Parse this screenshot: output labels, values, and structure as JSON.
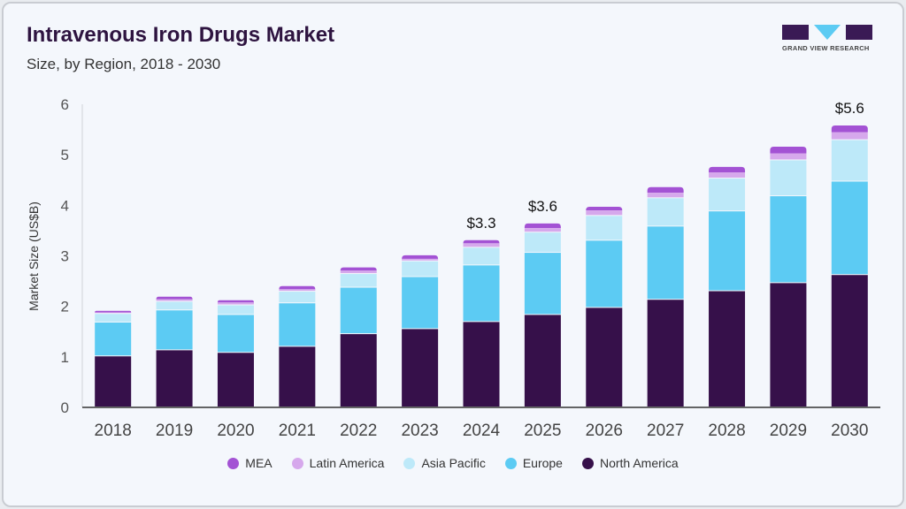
{
  "header": {
    "title": "Intravenous Iron Drugs Market",
    "subtitle": "Size, by Region, 2018 - 2030"
  },
  "logo": {
    "text": "GRAND VIEW RESEARCH"
  },
  "chart_data": {
    "type": "bar",
    "stacked": true,
    "title": "Intravenous Iron Drugs Market",
    "subtitle": "Size, by Region, 2018 - 2030",
    "xlabel": "",
    "ylabel": "Market Size (US$B)",
    "ylim": [
      0,
      6
    ],
    "yticks": [
      "0",
      "1",
      "2",
      "3",
      "4",
      "5",
      "6"
    ],
    "categories": [
      "2018",
      "2019",
      "2020",
      "2021",
      "2022",
      "2023",
      "2024",
      "2025",
      "2026",
      "2027",
      "2028",
      "2029",
      "2030"
    ],
    "series": [
      {
        "name": "North America",
        "color": "#36104a",
        "values": [
          1.01,
          1.13,
          1.08,
          1.2,
          1.45,
          1.55,
          1.69,
          1.83,
          1.97,
          2.13,
          2.3,
          2.46,
          2.62
        ]
      },
      {
        "name": "Europe",
        "color": "#5ccbf3",
        "values": [
          0.67,
          0.79,
          0.75,
          0.86,
          0.92,
          1.03,
          1.12,
          1.23,
          1.33,
          1.45,
          1.58,
          1.72,
          1.85
        ]
      },
      {
        "name": "Asia Pacific",
        "color": "#bde9f9",
        "values": [
          0.17,
          0.17,
          0.19,
          0.23,
          0.27,
          0.31,
          0.35,
          0.4,
          0.49,
          0.56,
          0.65,
          0.71,
          0.82
        ]
      },
      {
        "name": "Latin America",
        "color": "#d6a8ec",
        "values": [
          0.03,
          0.05,
          0.06,
          0.05,
          0.07,
          0.05,
          0.09,
          0.09,
          0.11,
          0.11,
          0.12,
          0.14,
          0.16
        ]
      },
      {
        "name": "MEA",
        "color": "#a352d4",
        "values": [
          0.03,
          0.05,
          0.04,
          0.06,
          0.06,
          0.07,
          0.06,
          0.09,
          0.07,
          0.11,
          0.11,
          0.13,
          0.13
        ]
      }
    ],
    "annotations": [
      {
        "category": "2024",
        "text": "$3.3"
      },
      {
        "category": "2025",
        "text": "$3.6"
      },
      {
        "category": "2030",
        "text": "$5.6"
      }
    ],
    "legend": {
      "placement": "bottom",
      "order": [
        "MEA",
        "Latin America",
        "Asia Pacific",
        "Europe",
        "North America"
      ]
    },
    "grid": false
  }
}
